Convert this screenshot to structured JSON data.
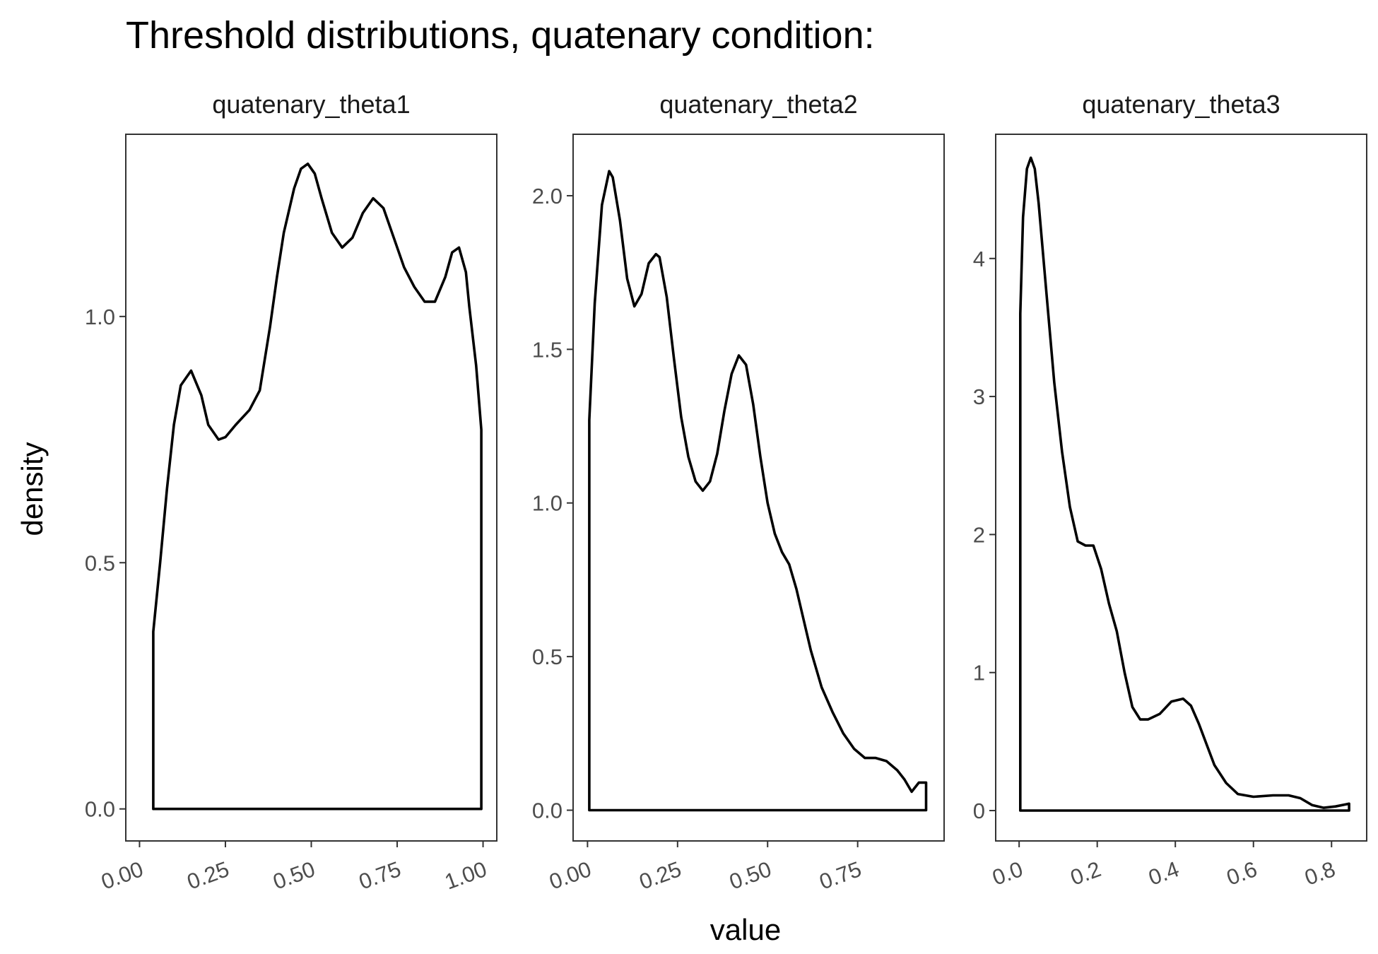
{
  "chart_data": {
    "type": "area",
    "title": "Threshold distributions, quatenary condition:",
    "xlabel": "value",
    "ylabel": "density",
    "grid": false,
    "legend": "none",
    "line_color": "#000000",
    "panels": [
      {
        "name": "quatenary_theta1",
        "xlim": [
          -0.04,
          1.04
        ],
        "ylim": [
          -0.065,
          1.37
        ],
        "x_ticks": [
          0.0,
          0.25,
          0.5,
          0.75,
          1.0
        ],
        "x_tick_labels": [
          "0.00",
          "0.25",
          "0.50",
          "0.75",
          "1.00"
        ],
        "y_ticks": [
          0.0,
          0.5,
          1.0
        ],
        "y_tick_labels": [
          "0.0",
          "0.5",
          "1.0"
        ],
        "x": [
          0.04,
          0.06,
          0.08,
          0.1,
          0.12,
          0.15,
          0.18,
          0.2,
          0.23,
          0.25,
          0.28,
          0.32,
          0.35,
          0.38,
          0.4,
          0.42,
          0.45,
          0.47,
          0.49,
          0.51,
          0.53,
          0.56,
          0.59,
          0.62,
          0.65,
          0.68,
          0.71,
          0.74,
          0.77,
          0.8,
          0.83,
          0.86,
          0.89,
          0.91,
          0.93,
          0.95,
          0.96,
          0.98,
          0.995
        ],
        "y": [
          0.36,
          0.5,
          0.65,
          0.78,
          0.86,
          0.89,
          0.84,
          0.78,
          0.75,
          0.755,
          0.78,
          0.81,
          0.85,
          0.98,
          1.08,
          1.17,
          1.26,
          1.3,
          1.31,
          1.29,
          1.24,
          1.17,
          1.14,
          1.16,
          1.21,
          1.24,
          1.22,
          1.16,
          1.1,
          1.06,
          1.03,
          1.03,
          1.08,
          1.13,
          1.14,
          1.09,
          1.02,
          0.9,
          0.77
        ]
      },
      {
        "name": "quatenary_theta2",
        "xlim": [
          -0.04,
          0.99
        ],
        "ylim": [
          -0.1,
          2.2
        ],
        "x_ticks": [
          0.0,
          0.25,
          0.5,
          0.75
        ],
        "x_tick_labels": [
          "0.00",
          "0.25",
          "0.50",
          "0.75"
        ],
        "y_ticks": [
          0.0,
          0.5,
          1.0,
          1.5,
          2.0
        ],
        "y_tick_labels": [
          "0.0",
          "0.5",
          "1.0",
          "1.5",
          "2.0"
        ],
        "x": [
          0.005,
          0.02,
          0.04,
          0.06,
          0.07,
          0.09,
          0.11,
          0.13,
          0.15,
          0.17,
          0.19,
          0.2,
          0.22,
          0.24,
          0.26,
          0.28,
          0.3,
          0.32,
          0.34,
          0.36,
          0.38,
          0.4,
          0.42,
          0.44,
          0.46,
          0.48,
          0.5,
          0.52,
          0.54,
          0.56,
          0.58,
          0.6,
          0.62,
          0.65,
          0.68,
          0.71,
          0.74,
          0.77,
          0.8,
          0.83,
          0.86,
          0.88,
          0.9,
          0.92,
          0.94
        ],
        "y": [
          1.27,
          1.65,
          1.97,
          2.08,
          2.06,
          1.92,
          1.73,
          1.64,
          1.68,
          1.78,
          1.81,
          1.8,
          1.67,
          1.47,
          1.28,
          1.15,
          1.07,
          1.04,
          1.07,
          1.16,
          1.3,
          1.42,
          1.48,
          1.45,
          1.32,
          1.15,
          1.0,
          0.9,
          0.84,
          0.8,
          0.72,
          0.62,
          0.52,
          0.4,
          0.32,
          0.25,
          0.2,
          0.17,
          0.17,
          0.16,
          0.13,
          0.1,
          0.06,
          0.09,
          0.09
        ]
      },
      {
        "name": "quatenary_theta3",
        "xlim": [
          -0.06,
          0.89
        ],
        "ylim": [
          -0.22,
          4.9
        ],
        "x_ticks": [
          0.0,
          0.2,
          0.4,
          0.6,
          0.8
        ],
        "x_tick_labels": [
          "0.0",
          "0.2",
          "0.4",
          "0.6",
          "0.8"
        ],
        "y_ticks": [
          0,
          1,
          2,
          3,
          4
        ],
        "y_tick_labels": [
          "0",
          "1",
          "2",
          "3",
          "4"
        ],
        "x": [
          0.003,
          0.01,
          0.02,
          0.03,
          0.04,
          0.05,
          0.07,
          0.09,
          0.11,
          0.13,
          0.15,
          0.17,
          0.19,
          0.21,
          0.23,
          0.25,
          0.27,
          0.29,
          0.31,
          0.33,
          0.36,
          0.39,
          0.42,
          0.44,
          0.46,
          0.48,
          0.5,
          0.53,
          0.56,
          0.6,
          0.65,
          0.69,
          0.72,
          0.75,
          0.78,
          0.81,
          0.845
        ],
        "y": [
          3.6,
          4.3,
          4.65,
          4.73,
          4.65,
          4.4,
          3.75,
          3.1,
          2.6,
          2.2,
          1.95,
          1.92,
          1.92,
          1.75,
          1.5,
          1.3,
          1.0,
          0.75,
          0.66,
          0.66,
          0.7,
          0.79,
          0.81,
          0.76,
          0.63,
          0.48,
          0.33,
          0.2,
          0.12,
          0.1,
          0.11,
          0.11,
          0.09,
          0.04,
          0.02,
          0.03,
          0.05
        ]
      }
    ]
  }
}
